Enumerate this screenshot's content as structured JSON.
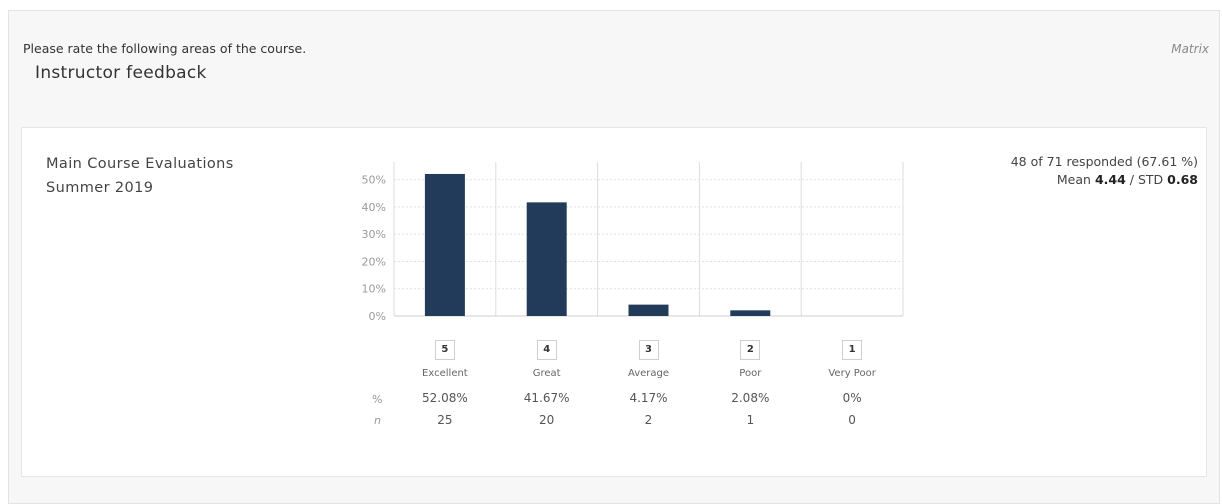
{
  "question": {
    "prompt": "Please rate the following areas of the course.",
    "title": "Instructor feedback",
    "type": "Matrix"
  },
  "survey": {
    "name": "Main Course Evaluations Summer 2019"
  },
  "stats": {
    "responded_text": "48 of 71 responded (67.61 %)",
    "mean_label": "Mean",
    "mean_value": "4.44",
    "separator": "/",
    "std_label": "STD",
    "std_value": "0.68"
  },
  "table": {
    "pct_header": "%",
    "n_header": "n"
  },
  "chart_data": {
    "type": "bar",
    "categories": [
      "5",
      "4",
      "3",
      "2",
      "1"
    ],
    "category_labels": [
      "Excellent",
      "Great",
      "Average",
      "Poor",
      "Very Poor"
    ],
    "values": [
      52.08,
      41.67,
      4.17,
      2.08,
      0
    ],
    "percent_labels": [
      "52.08%",
      "41.67%",
      "4.17%",
      "2.08%",
      "0%"
    ],
    "counts": [
      "25",
      "20",
      "2",
      "1",
      "0"
    ],
    "yticks": [
      "0%",
      "10%",
      "20%",
      "30%",
      "40%",
      "50%"
    ],
    "ylim": [
      0,
      50
    ],
    "bar_color": "#233b5a",
    "grid": true
  }
}
